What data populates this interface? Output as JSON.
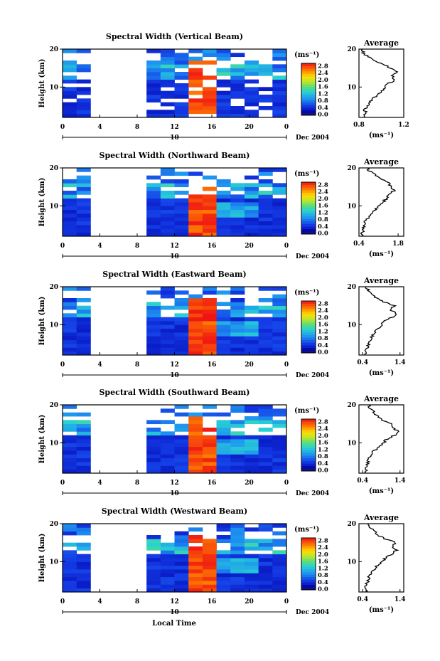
{
  "figure": {
    "xlabel": "Local Time",
    "date_label": "Dec 2004",
    "day_label": "10",
    "colorbar_unit": "(ms⁻¹)",
    "avg_title": "Average",
    "avg_unit": "(ms⁻¹)"
  },
  "chart_data": [
    {
      "type": "heatmap",
      "title": "Spectral Width (Vertical Beam)",
      "ylabel": "Height (km)",
      "xlim": [
        0,
        24
      ],
      "ylim": [
        2,
        20
      ],
      "x_ticks": [
        "0",
        "4",
        "8",
        "12",
        "16",
        "20",
        "0"
      ],
      "y_ticks": [
        "10",
        "20"
      ],
      "colorbar": {
        "ticks": [
          "0.0",
          "0.4",
          "0.8",
          "1.2",
          "1.6",
          "2.0",
          "2.4",
          "2.8"
        ],
        "range": [
          0,
          3.0
        ]
      },
      "data_gap": [
        3.5,
        9.0
      ],
      "average_profile": {
        "xlim": [
          0.8,
          1.2
        ],
        "x_ticks": [
          "0.8",
          "1.2"
        ],
        "y_ticks": [
          "10",
          "20"
        ],
        "heights": [
          2,
          3,
          4,
          5,
          6,
          7,
          8,
          9,
          10,
          11,
          12,
          13,
          14,
          15,
          16,
          17,
          18,
          19,
          20
        ],
        "values": [
          0.84,
          0.86,
          0.85,
          0.88,
          0.9,
          0.93,
          0.97,
          1.0,
          1.03,
          1.07,
          1.12,
          1.1,
          1.15,
          1.08,
          1.02,
          0.93,
          0.88,
          0.84,
          0.83
        ]
      }
    },
    {
      "type": "heatmap",
      "title": "Spectral Width (Northward Beam)",
      "ylabel": "Height (km)",
      "xlim": [
        0,
        24
      ],
      "ylim": [
        2,
        20
      ],
      "x_ticks": [
        "0",
        "4",
        "8",
        "12",
        "16",
        "20",
        "0"
      ],
      "y_ticks": [
        "10",
        "20"
      ],
      "colorbar": {
        "ticks": [
          "0.0",
          "0.4",
          "0.8",
          "1.2",
          "1.6",
          "2.0",
          "2.4",
          "2.8"
        ],
        "range": [
          0,
          3.0
        ]
      },
      "data_gap": [
        3.5,
        9.0
      ],
      "average_profile": {
        "xlim": [
          0.4,
          2.0
        ],
        "x_ticks": [
          "0.4",
          "1.8"
        ],
        "y_ticks": [
          "10",
          "20"
        ],
        "heights": [
          2,
          3,
          4,
          5,
          6,
          7,
          8,
          9,
          10,
          11,
          12,
          13,
          14,
          15,
          16,
          17,
          18,
          19,
          20
        ],
        "values": [
          0.5,
          0.52,
          0.55,
          0.6,
          0.65,
          0.72,
          0.85,
          1.0,
          1.15,
          1.25,
          1.4,
          1.5,
          1.65,
          1.55,
          1.45,
          1.2,
          1.0,
          0.8,
          0.7
        ]
      }
    },
    {
      "type": "heatmap",
      "title": "Spectral Width (Eastward Beam)",
      "ylabel": "Height (km)",
      "xlim": [
        0,
        24
      ],
      "ylim": [
        2,
        20
      ],
      "x_ticks": [
        "0",
        "4",
        "8",
        "12",
        "16",
        "20",
        "0"
      ],
      "y_ticks": [
        "10",
        "20"
      ],
      "colorbar": {
        "ticks": [
          "0.0",
          "0.4",
          "0.8",
          "1.2",
          "1.6",
          "2.0",
          "2.4",
          "2.8"
        ],
        "range": [
          0,
          3.0
        ]
      },
      "data_gap": [
        3.5,
        9.0
      ],
      "average_profile": {
        "xlim": [
          0.3,
          1.5
        ],
        "x_ticks": [
          "0.4",
          "1.4"
        ],
        "y_ticks": [
          "10",
          "20"
        ],
        "heights": [
          2,
          3,
          4,
          5,
          6,
          7,
          8,
          9,
          10,
          11,
          12,
          13,
          14,
          15,
          16,
          17,
          18,
          19,
          20
        ],
        "values": [
          0.5,
          0.48,
          0.52,
          0.56,
          0.6,
          0.65,
          0.72,
          0.8,
          0.9,
          1.0,
          1.2,
          1.3,
          1.15,
          1.25,
          0.95,
          0.75,
          0.65,
          0.55,
          0.5
        ]
      }
    },
    {
      "type": "heatmap",
      "title": "Spectral Width (Southward Beam)",
      "ylabel": "Height (km)",
      "xlim": [
        0,
        24
      ],
      "ylim": [
        2,
        20
      ],
      "x_ticks": [
        "0",
        "4",
        "8",
        "12",
        "16",
        "20",
        "0"
      ],
      "y_ticks": [
        "10",
        "20"
      ],
      "colorbar": {
        "ticks": [
          "0.0",
          "0.4",
          "0.8",
          "1.2",
          "1.6",
          "2.0",
          "2.4",
          "2.8"
        ],
        "range": [
          0,
          3.0
        ]
      },
      "data_gap": [
        3.5,
        9.0
      ],
      "average_profile": {
        "xlim": [
          0.3,
          1.5
        ],
        "x_ticks": [
          "0.4",
          "1.4"
        ],
        "y_ticks": [
          "10",
          "20"
        ],
        "heights": [
          2,
          3,
          4,
          5,
          6,
          7,
          8,
          9,
          10,
          11,
          12,
          13,
          14,
          15,
          16,
          17,
          18,
          19,
          20
        ],
        "values": [
          0.5,
          0.48,
          0.5,
          0.54,
          0.58,
          0.65,
          0.72,
          0.82,
          0.95,
          1.05,
          1.25,
          1.35,
          1.2,
          1.15,
          0.95,
          0.8,
          0.7,
          0.6,
          0.55
        ]
      }
    },
    {
      "type": "heatmap",
      "title": "Spectral Width (Westward Beam)",
      "ylabel": "Height (km)",
      "xlim": [
        0,
        24
      ],
      "ylim": [
        2,
        20
      ],
      "x_ticks": [
        "0",
        "4",
        "8",
        "12",
        "16",
        "20",
        "0"
      ],
      "y_ticks": [
        "10",
        "20"
      ],
      "colorbar": {
        "ticks": [
          "0.0",
          "0.4",
          "0.8",
          "1.2",
          "1.6",
          "2.0",
          "2.4",
          "2.8"
        ],
        "range": [
          0,
          3.0
        ]
      },
      "data_gap": [
        3.5,
        9.0
      ],
      "average_profile": {
        "xlim": [
          0.3,
          1.5
        ],
        "x_ticks": [
          "0.4",
          "1.4"
        ],
        "y_ticks": [
          "10",
          "20"
        ],
        "heights": [
          2,
          3,
          4,
          5,
          6,
          7,
          8,
          9,
          10,
          11,
          12,
          13,
          14,
          15,
          16,
          17,
          18,
          19,
          20
        ],
        "values": [
          0.5,
          0.46,
          0.5,
          0.53,
          0.57,
          0.62,
          0.7,
          0.8,
          0.92,
          1.02,
          1.2,
          1.3,
          1.18,
          1.3,
          1.0,
          0.8,
          0.7,
          0.6,
          0.55
        ]
      }
    }
  ]
}
